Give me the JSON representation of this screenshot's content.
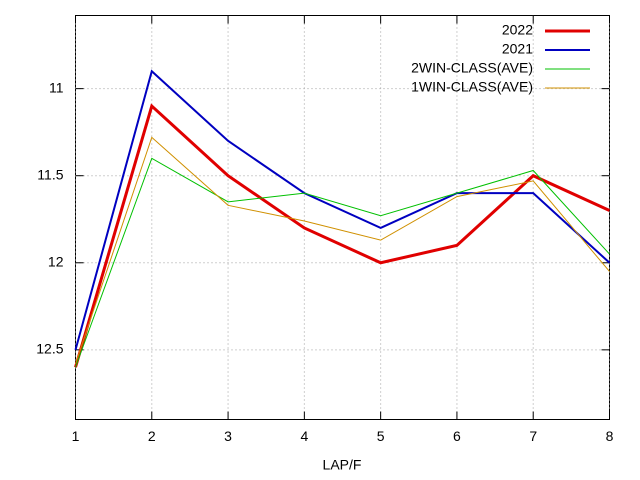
{
  "chart_data": {
    "type": "line",
    "xlabel": "LAP/F",
    "x": [
      1,
      2,
      3,
      4,
      5,
      6,
      7,
      8
    ],
    "series": [
      {
        "name": "2022",
        "color": "#e00000",
        "width": 3,
        "values": [
          12.6,
          11.1,
          11.5,
          11.8,
          12.0,
          11.9,
          11.5,
          11.7
        ]
      },
      {
        "name": "2021",
        "color": "#0000c0",
        "width": 2,
        "values": [
          12.5,
          10.9,
          11.3,
          11.6,
          11.8,
          11.6,
          11.6,
          12.0
        ]
      },
      {
        "name": "2WIN-CLASS(AVE)",
        "color": "#00c000",
        "width": 1,
        "values": [
          12.6,
          11.4,
          11.65,
          11.6,
          11.73,
          11.6,
          11.47,
          11.95
        ]
      },
      {
        "name": "1WIN-CLASS(AVE)",
        "color": "#d09000",
        "width": 1,
        "values": [
          12.58,
          11.28,
          11.67,
          11.76,
          11.87,
          11.62,
          11.53,
          12.05
        ]
      }
    ],
    "xlim": [
      1,
      8
    ],
    "xticks": [
      1,
      2,
      3,
      4,
      5,
      6,
      7,
      8
    ],
    "ylim": [
      12.9,
      10.58
    ],
    "yticks": [
      11,
      11.5,
      12,
      12.5
    ],
    "grid": true,
    "legend": "top-right"
  }
}
